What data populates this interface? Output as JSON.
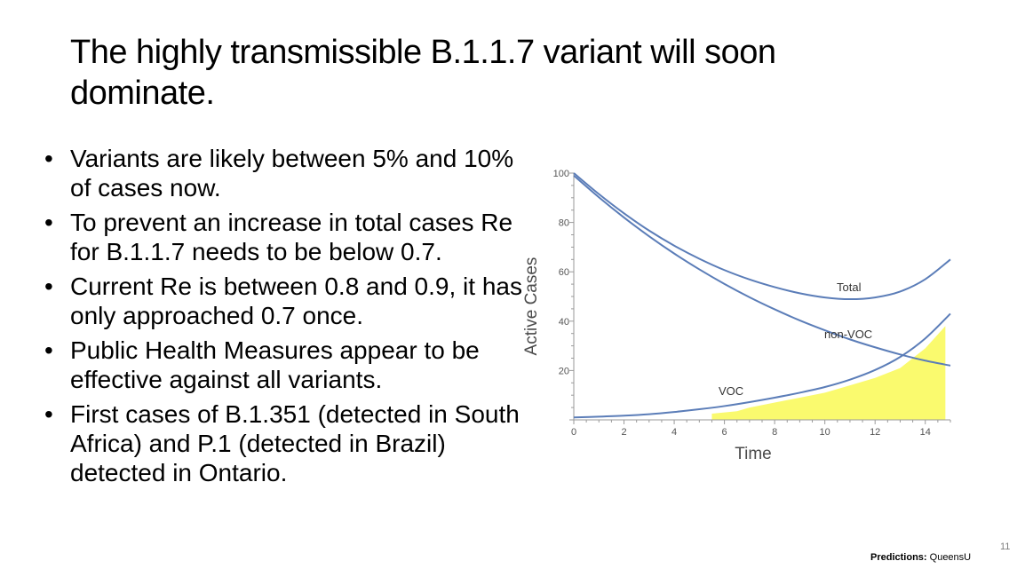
{
  "title": "The highly transmissible B.1.1.7 variant will soon dominate.",
  "bullets": [
    "Variants are likely between 5% and 10% of cases now.",
    "To prevent an increase in total cases Re for B.1.1.7 needs to be below 0.7.",
    "Current Re is between 0.8 and 0.9, it has only approached 0.7 once.",
    "Public Health Measures appear to be effective against all variants.",
    "First cases of B.1.351 (detected in South Africa) and P.1 (detected in Brazil) detected in Ontario."
  ],
  "bullet_glyph": "•",
  "footer": {
    "label": "Predictions:",
    "source": "QueensU"
  },
  "slide_number": "11",
  "chart_data": {
    "type": "line",
    "xlabel": "Time",
    "ylabel": "Active Cases",
    "xlim": [
      0,
      15
    ],
    "ylim": [
      0,
      100
    ],
    "x_ticks": [
      0,
      2,
      4,
      6,
      8,
      10,
      12,
      14
    ],
    "y_ticks": [
      20,
      40,
      60,
      80,
      100
    ],
    "grid": false,
    "line_color": "#5b7db8",
    "fill_color": "#fafa6e",
    "series": [
      {
        "name": "Total",
        "x": [
          0,
          1,
          2,
          3,
          4,
          5,
          6,
          7,
          8,
          9,
          10,
          11,
          12,
          13,
          14,
          15
        ],
        "values": [
          100,
          91.5,
          83.7,
          76.7,
          70.6,
          65.3,
          60.7,
          56.9,
          53.8,
          51.3,
          49.6,
          48.9,
          49.6,
          52.0,
          57.0,
          65.0
        ]
      },
      {
        "name": "non-VOC",
        "x": [
          0,
          1,
          2,
          3,
          4,
          5,
          6,
          7,
          8,
          9,
          10,
          11,
          12,
          13,
          14,
          15
        ],
        "values": [
          99,
          90.2,
          82.0,
          74.4,
          67.4,
          61.0,
          55.1,
          49.7,
          44.8,
          40.3,
          36.3,
          32.6,
          29.4,
          26.5,
          24.0,
          22.0
        ]
      },
      {
        "name": "VOC",
        "x": [
          0,
          1,
          2,
          3,
          4,
          5,
          6,
          7,
          8,
          9,
          10,
          11,
          12,
          13,
          14,
          15
        ],
        "values": [
          1,
          1.3,
          1.7,
          2.3,
          3.2,
          4.3,
          5.6,
          7.2,
          9.0,
          11.0,
          13.3,
          16.3,
          20.2,
          25.5,
          33.0,
          43.0
        ]
      }
    ],
    "shaded_region": {
      "x": [
        5.5,
        6.5,
        7,
        8,
        9,
        10,
        11,
        12,
        13,
        14,
        14.8
      ],
      "values": [
        2.5,
        3.5,
        5,
        7,
        9,
        11,
        14,
        17,
        21,
        29,
        38
      ]
    }
  }
}
